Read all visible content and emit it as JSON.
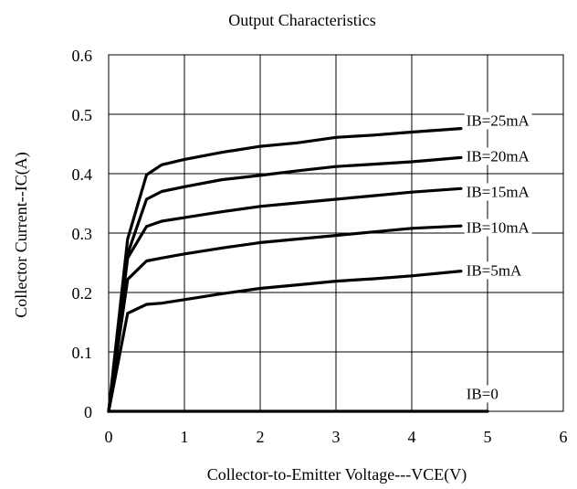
{
  "chart_data": {
    "type": "line",
    "title": "Output Characteristics",
    "xlabel": "Collector-to-Emitter Voltage---VCE(V)",
    "ylabel": "Collector Current--IC(A)",
    "xlim": [
      0,
      6
    ],
    "ylim": [
      0,
      0.6
    ],
    "x_ticks": [
      0,
      1,
      2,
      3,
      4,
      5,
      6
    ],
    "x_tick_labels": [
      "0",
      "1",
      "2",
      "3",
      "4",
      "5",
      "6"
    ],
    "y_ticks": [
      0,
      0.1,
      0.2,
      0.3,
      0.4,
      0.5,
      0.6
    ],
    "y_tick_labels": [
      "0",
      "0.1",
      "0.2",
      "0.3",
      "0.4",
      "0.5",
      "0.6"
    ],
    "grid": true,
    "legend": "none (series labeled inline on the curves)",
    "line_color": "#000000",
    "series": [
      {
        "name": "IB=25mA",
        "x": [
          0,
          0.25,
          0.5,
          0.7,
          1.0,
          1.5,
          2.0,
          2.5,
          3.0,
          3.5,
          4.0,
          4.65
        ],
        "y": [
          0,
          0.29,
          0.398,
          0.415,
          0.424,
          0.436,
          0.446,
          0.452,
          0.461,
          0.465,
          0.47,
          0.476
        ]
      },
      {
        "name": "IB=20mA",
        "x": [
          0,
          0.25,
          0.5,
          0.7,
          1.0,
          1.5,
          2.0,
          2.5,
          3.0,
          3.5,
          4.0,
          4.65
        ],
        "y": [
          0,
          0.265,
          0.357,
          0.37,
          0.378,
          0.39,
          0.397,
          0.405,
          0.412,
          0.416,
          0.42,
          0.427
        ]
      },
      {
        "name": "IB=15mA",
        "x": [
          0,
          0.25,
          0.5,
          0.7,
          1.0,
          1.5,
          2.0,
          2.5,
          3.0,
          3.5,
          4.0,
          4.65
        ],
        "y": [
          0,
          0.258,
          0.311,
          0.32,
          0.326,
          0.336,
          0.345,
          0.351,
          0.357,
          0.363,
          0.369,
          0.375
        ]
      },
      {
        "name": "IB=10mA",
        "x": [
          0,
          0.25,
          0.5,
          0.7,
          1.0,
          1.5,
          2.0,
          2.5,
          3.0,
          3.5,
          4.0,
          4.65
        ],
        "y": [
          0,
          0.222,
          0.253,
          0.258,
          0.265,
          0.275,
          0.284,
          0.29,
          0.296,
          0.302,
          0.308,
          0.312
        ]
      },
      {
        "name": "IB=5mA",
        "x": [
          0,
          0.25,
          0.5,
          0.7,
          1.0,
          1.5,
          2.0,
          2.5,
          3.0,
          3.5,
          4.0,
          4.65
        ],
        "y": [
          0,
          0.165,
          0.18,
          0.182,
          0.188,
          0.198,
          0.207,
          0.213,
          0.219,
          0.223,
          0.228,
          0.236
        ]
      },
      {
        "name": "IB=0",
        "x": [
          0,
          5.0
        ],
        "y": [
          0,
          0
        ]
      }
    ],
    "series_label_anchor": [
      {
        "x": 4.72,
        "y": 0.49
      },
      {
        "x": 4.72,
        "y": 0.43
      },
      {
        "x": 4.72,
        "y": 0.37
      },
      {
        "x": 4.72,
        "y": 0.31
      },
      {
        "x": 4.72,
        "y": 0.238
      },
      {
        "x": 4.72,
        "y": 0.03
      }
    ]
  }
}
